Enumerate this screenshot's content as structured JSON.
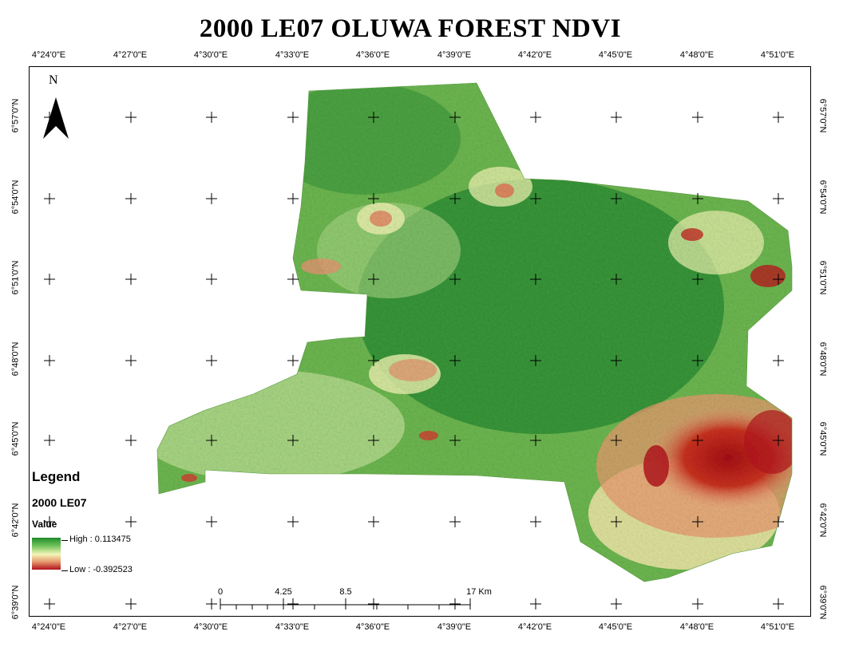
{
  "title": "2000 LE07 OLUWA FOREST NDVI",
  "longitude_labels": [
    "4°24'0\"E",
    "4°27'0\"E",
    "4°30'0\"E",
    "4°33'0\"E",
    "4°36'0\"E",
    "4°39'0\"E",
    "4°42'0\"E",
    "4°45'0\"E",
    "4°48'0\"E",
    "4°51'0\"E"
  ],
  "latitude_labels": [
    "6°57'0\"N",
    "6°54'0\"N",
    "6°51'0\"N",
    "6°48'0\"N",
    "6°45'0\"N",
    "6°42'0\"N",
    "6°39'0\"N"
  ],
  "north_arrow": {
    "label": "N"
  },
  "legend": {
    "title": "Legend",
    "layer": "2000 LE07",
    "field": "Value",
    "high": "High : 0.113475",
    "low": "Low : -0.392523",
    "ramp_colors": [
      "#1f8a2a",
      "#6fc15a",
      "#f4f6b8",
      "#e79a6e",
      "#b0121c"
    ]
  },
  "scale_bar": {
    "labels": [
      "0",
      "4.25",
      "8.5",
      "17 Km"
    ],
    "values_km": [
      0,
      4.25,
      8.5,
      17
    ]
  },
  "colors": {
    "forest_dense": "#2f8f35",
    "forest": "#5fae48",
    "vegetation_light": "#9fd07a",
    "sparse": "#eef3b0",
    "bare_moderate": "#e8a07a",
    "bare_low": "#b3161d"
  }
}
